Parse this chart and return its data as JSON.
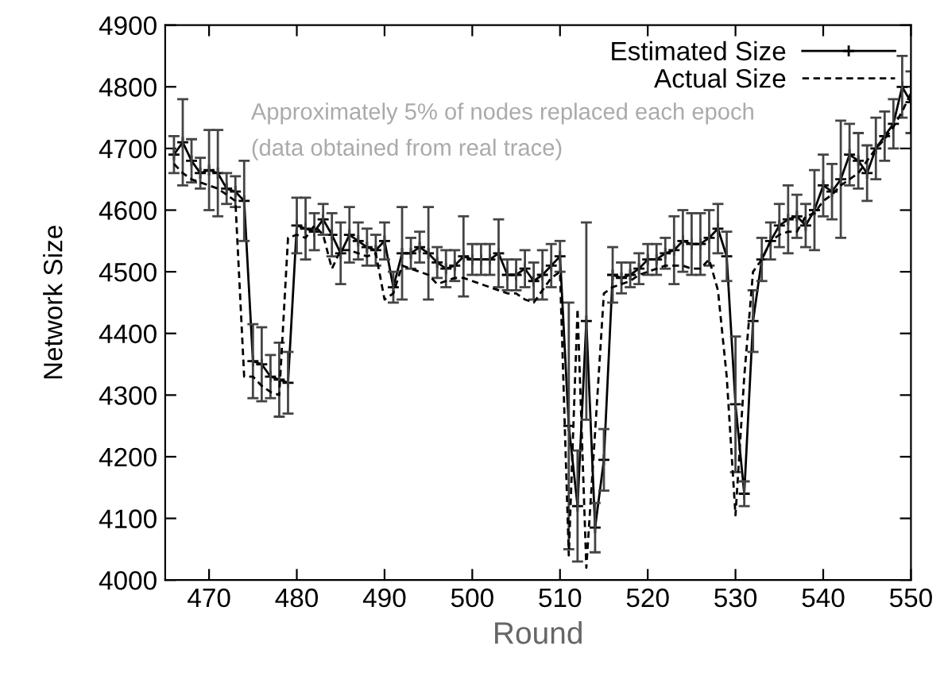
{
  "chart_data": {
    "type": "line",
    "xlabel": "Round",
    "ylabel": "Network Size",
    "annotations": [
      {
        "text": "Approximately 5% of nodes replaced each epoch"
      },
      {
        "text": "(data obtained from real trace)"
      }
    ],
    "x": [
      466,
      467,
      468,
      469,
      470,
      471,
      472,
      473,
      474,
      475,
      476,
      477,
      478,
      479,
      480,
      481,
      482,
      483,
      484,
      485,
      486,
      487,
      488,
      489,
      490,
      491,
      492,
      493,
      494,
      495,
      496,
      497,
      498,
      499,
      500,
      501,
      502,
      503,
      504,
      505,
      506,
      507,
      508,
      509,
      510,
      511,
      512,
      513,
      514,
      515,
      516,
      517,
      518,
      519,
      520,
      521,
      522,
      523,
      524,
      525,
      526,
      527,
      528,
      529,
      530,
      531,
      532,
      533,
      534,
      535,
      536,
      537,
      538,
      539,
      540,
      541,
      542,
      543,
      544,
      545,
      546,
      547,
      548,
      549,
      550
    ],
    "series": [
      {
        "name": "Estimated Size",
        "color": "#000000",
        "line_style": "solid",
        "marker": "cross",
        "values": [
          4690,
          4710,
          4680,
          4660,
          4665,
          4660,
          4635,
          4630,
          4615,
          4355,
          4350,
          4330,
          4325,
          4320,
          4575,
          4570,
          4565,
          4585,
          4560,
          4530,
          4560,
          4550,
          4540,
          4535,
          4550,
          4475,
          4530,
          4530,
          4540,
          4530,
          4515,
          4505,
          4510,
          4525,
          4520,
          4520,
          4520,
          4530,
          4495,
          4495,
          4505,
          4485,
          4495,
          4510,
          4525,
          4250,
          4120,
          4420,
          4085,
          4195,
          4495,
          4490,
          4495,
          4505,
          4520,
          4520,
          4530,
          4535,
          4550,
          4545,
          4545,
          4555,
          4570,
          4525,
          4285,
          4140,
          4420,
          4520,
          4550,
          4575,
          4585,
          4590,
          4575,
          4600,
          4640,
          4630,
          4650,
          4690,
          4680,
          4660,
          4700,
          4720,
          4740,
          4800,
          4775
        ],
        "errors": [
          30,
          70,
          35,
          25,
          65,
          70,
          25,
          25,
          65,
          60,
          60,
          35,
          60,
          50,
          45,
          50,
          30,
          25,
          35,
          50,
          45,
          30,
          30,
          25,
          30,
          25,
          75,
          25,
          25,
          75,
          25,
          30,
          25,
          65,
          25,
          25,
          25,
          55,
          25,
          25,
          30,
          30,
          40,
          35,
          25,
          200,
          90,
          160,
          40,
          50,
          45,
          25,
          20,
          25,
          25,
          25,
          25,
          55,
          50,
          50,
          50,
          45,
          40,
          40,
          110,
          20,
          50,
          35,
          30,
          35,
          55,
          35,
          35,
          65,
          50,
          45,
          95,
          50,
          45,
          45,
          50,
          40,
          40,
          50,
          50
        ]
      },
      {
        "name": "Actual Size",
        "color": "#000000",
        "line_style": "dashed",
        "marker": "none",
        "values": [
          4675,
          4660,
          4650,
          4645,
          4640,
          4635,
          4625,
          4615,
          4330,
          4330,
          4315,
          4305,
          4300,
          4555,
          4560,
          4555,
          4575,
          4560,
          4505,
          4535,
          4535,
          4530,
          4525,
          4530,
          4455,
          4465,
          4510,
          4505,
          4500,
          4495,
          4480,
          4485,
          4490,
          4490,
          4485,
          4480,
          4475,
          4470,
          4465,
          4465,
          4455,
          4450,
          4470,
          4490,
          4500,
          4040,
          4440,
          4020,
          4240,
          4465,
          4475,
          4480,
          4485,
          4495,
          4500,
          4505,
          4510,
          4510,
          4510,
          4505,
          4505,
          4520,
          4470,
          4330,
          4105,
          4330,
          4500,
          4520,
          4550,
          4560,
          4565,
          4565,
          4590,
          4595,
          4615,
          4625,
          4640,
          4650,
          4660,
          4680,
          4700,
          4715,
          4735,
          4760,
          4790
        ]
      }
    ],
    "xlim": [
      465,
      550
    ],
    "xticks": [
      470,
      480,
      490,
      500,
      510,
      520,
      530,
      540,
      550
    ],
    "ylim": [
      4000,
      4900
    ],
    "yticks": [
      4000,
      4100,
      4200,
      4300,
      4400,
      4500,
      4600,
      4700,
      4800,
      4900
    ],
    "grid": false,
    "legend": "top right"
  }
}
